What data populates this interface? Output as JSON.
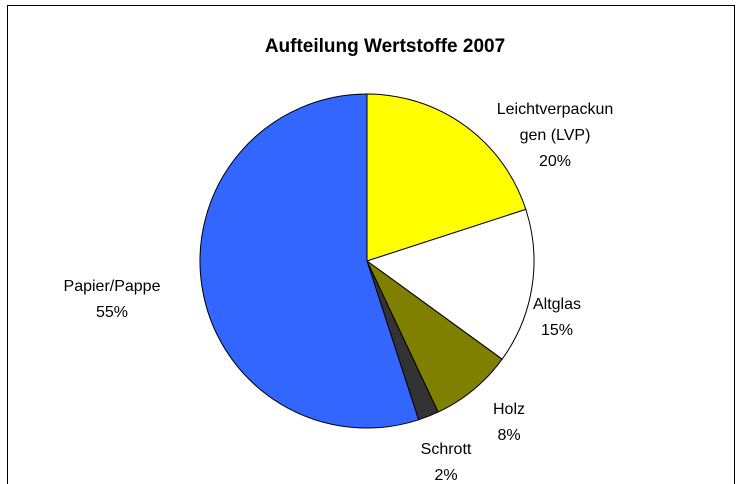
{
  "chart_data": {
    "type": "pie",
    "title": "Aufteilung Wertstoffe 2007",
    "categories": [
      "Leichtverpackungen (LVP)",
      "Altglas",
      "Holz",
      "Schrott",
      "Papier/Pappe"
    ],
    "values": [
      20,
      15,
      8,
      2,
      55
    ],
    "value_labels": [
      "20%",
      "15%",
      "8%",
      "2%",
      "55%"
    ],
    "colors": [
      "#ffff00",
      "#ffffff",
      "#808000",
      "#333333",
      "#3366ff"
    ]
  }
}
